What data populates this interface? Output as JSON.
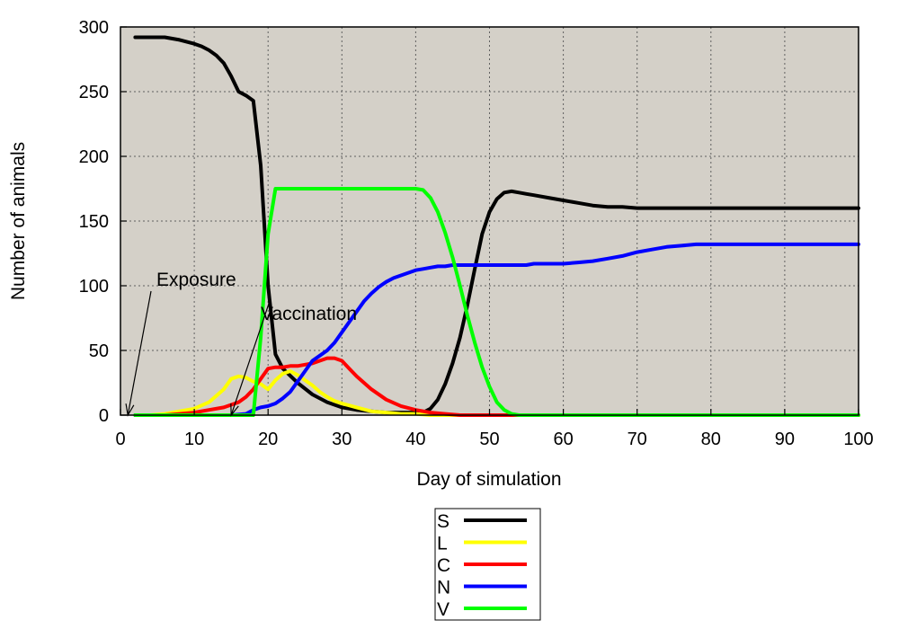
{
  "chart_data": {
    "type": "line",
    "xlabel": "Day of simulation",
    "ylabel": "Number of animals",
    "xlim": [
      0,
      100
    ],
    "ylim": [
      0,
      300
    ],
    "xticks": [
      0,
      10,
      20,
      30,
      40,
      50,
      60,
      70,
      80,
      90,
      100
    ],
    "yticks": [
      0,
      50,
      100,
      150,
      200,
      250,
      300
    ],
    "grid": true,
    "plot_background": "#d4d0c8",
    "legend_position": "bottom-center",
    "annotations": [
      {
        "text": "Exposure",
        "x": 1,
        "y": 0
      },
      {
        "text": "Vaccination",
        "x": 15,
        "y": 0
      }
    ],
    "series": [
      {
        "name": "S",
        "color": "#000000",
        "x": [
          2,
          4,
          6,
          8,
          10,
          11,
          12,
          13,
          14,
          15,
          16,
          17,
          18,
          19,
          20,
          21,
          22,
          24,
          26,
          28,
          30,
          32,
          34,
          36,
          38,
          40,
          41,
          42,
          43,
          44,
          45,
          46,
          47,
          48,
          49,
          50,
          51,
          52,
          53,
          54,
          55,
          56,
          58,
          60,
          62,
          64,
          66,
          68,
          70,
          75,
          80,
          90,
          100
        ],
        "y": [
          292,
          292,
          292,
          290,
          287,
          285,
          282,
          278,
          272,
          262,
          250,
          247,
          243,
          193,
          100,
          47,
          36,
          25,
          16,
          10,
          6,
          4,
          3,
          2,
          2,
          2,
          2,
          5,
          12,
          24,
          40,
          60,
          85,
          113,
          140,
          157,
          167,
          172,
          173,
          172,
          171,
          170,
          168,
          166,
          164,
          162,
          161,
          161,
          160,
          160,
          160,
          160,
          160
        ]
      },
      {
        "name": "L",
        "color": "#ffff00",
        "x": [
          2,
          4,
          6,
          8,
          10,
          12,
          14,
          15,
          16,
          17,
          18,
          19,
          20,
          21,
          22,
          23,
          24,
          25,
          26,
          27,
          28,
          29,
          30,
          32,
          34,
          36,
          38,
          40,
          42,
          44,
          46,
          48,
          50,
          60,
          80,
          100
        ],
        "y": [
          0,
          0,
          1,
          3,
          5,
          10,
          20,
          28,
          30,
          29,
          26,
          24,
          20,
          27,
          32,
          34,
          31,
          27,
          23,
          18,
          14,
          11,
          9,
          6,
          3,
          2,
          1,
          1,
          0,
          0,
          0,
          0,
          0,
          0,
          0,
          0
        ]
      },
      {
        "name": "C",
        "color": "#ff0000",
        "x": [
          2,
          4,
          6,
          8,
          10,
          12,
          14,
          15,
          16,
          17,
          18,
          19,
          20,
          21,
          22,
          23,
          24,
          25,
          26,
          27,
          28,
          29,
          30,
          31,
          32,
          34,
          36,
          38,
          40,
          42,
          44,
          46,
          50,
          60,
          80,
          100
        ],
        "y": [
          0,
          0,
          0,
          1,
          2,
          4,
          6,
          8,
          10,
          14,
          20,
          28,
          36,
          37,
          37,
          38,
          38,
          39,
          40,
          42,
          44,
          44,
          42,
          36,
          30,
          20,
          12,
          7,
          4,
          2,
          1,
          0,
          0,
          0,
          0,
          0
        ]
      },
      {
        "name": "N",
        "color": "#0000ff",
        "x": [
          2,
          10,
          15,
          17,
          18,
          19,
          20,
          21,
          22,
          23,
          24,
          25,
          26,
          27,
          28,
          29,
          30,
          31,
          32,
          33,
          34,
          35,
          36,
          37,
          38,
          39,
          40,
          41,
          42,
          43,
          44,
          45,
          50,
          55,
          56,
          60,
          62,
          64,
          66,
          68,
          70,
          72,
          74,
          76,
          78,
          80,
          90,
          100
        ],
        "y": [
          0,
          0,
          0,
          1,
          4,
          6,
          7,
          9,
          13,
          18,
          26,
          34,
          42,
          46,
          50,
          56,
          64,
          72,
          80,
          88,
          94,
          99,
          103,
          106,
          108,
          110,
          112,
          113,
          114,
          115,
          115,
          116,
          116,
          116,
          117,
          117,
          118,
          119,
          121,
          123,
          126,
          128,
          130,
          131,
          132,
          132,
          132,
          132
        ]
      },
      {
        "name": "V",
        "color": "#00ff00",
        "x": [
          2,
          17,
          18,
          19,
          20,
          21,
          30,
          38,
          40,
          41,
          42,
          43,
          44,
          45,
          46,
          47,
          48,
          49,
          50,
          51,
          52,
          53,
          54,
          55,
          60,
          80,
          100
        ],
        "y": [
          0,
          0,
          0,
          60,
          140,
          175,
          175,
          175,
          175,
          174,
          168,
          157,
          141,
          122,
          100,
          77,
          56,
          37,
          22,
          10,
          4,
          1,
          0,
          0,
          0,
          0,
          0
        ]
      }
    ]
  }
}
